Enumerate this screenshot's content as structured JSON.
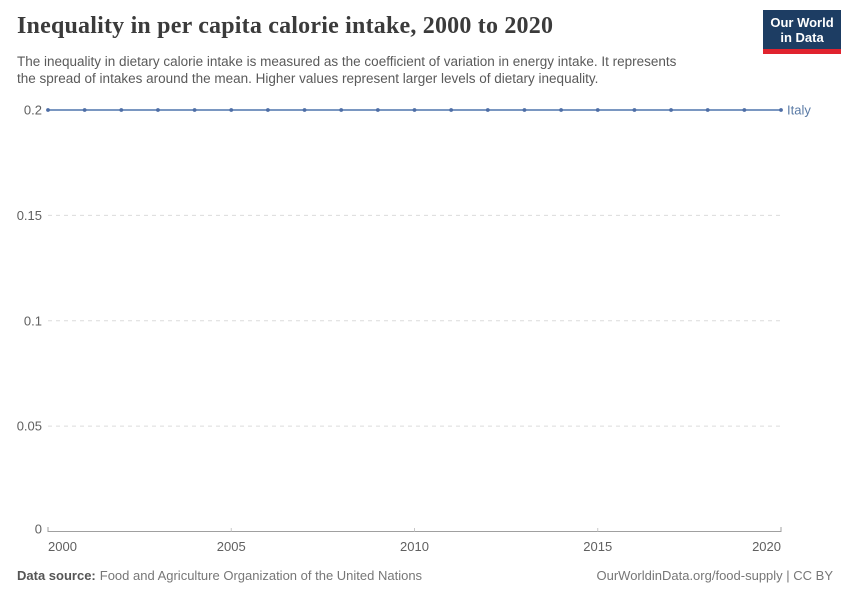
{
  "header": {
    "title": "Inequality in per capita calorie intake, 2000 to 2020",
    "subtitle_line1": "The inequality in dietary calorie intake is measured as the coefficient of variation in energy intake. It represents",
    "subtitle_line2": "the spread of intakes around the mean. Higher values represent larger levels of dietary inequality.",
    "logo_line1": "Our World",
    "logo_line2": "in Data",
    "logo_bg_color": "#1d3d63",
    "logo_stripe_color": "#e0232e"
  },
  "chart_data": {
    "type": "line",
    "title": "Inequality in per capita calorie intake, 2000 to 2020",
    "xlabel": "",
    "ylabel": "",
    "xlim": [
      2000,
      2020
    ],
    "ylim": [
      0,
      0.2
    ],
    "x_ticks": [
      2000,
      2005,
      2010,
      2015,
      2020
    ],
    "x_tick_labels": [
      "2000",
      "2005",
      "2010",
      "2015",
      "2020"
    ],
    "y_ticks": [
      0,
      0.05,
      0.1,
      0.15,
      0.2
    ],
    "y_tick_labels": [
      "0",
      "0.05",
      "0.1",
      "0.15",
      "0.2"
    ],
    "grid": "horizontal-dashed",
    "legend_position": "end-of-line-label",
    "series": [
      {
        "name": "Italy",
        "color": "#6788b8",
        "point_color": "#4e6ea6",
        "label_color": "#5b7ba6",
        "x": [
          2000,
          2001,
          2002,
          2003,
          2004,
          2005,
          2006,
          2007,
          2008,
          2009,
          2010,
          2011,
          2012,
          2013,
          2014,
          2015,
          2016,
          2017,
          2018,
          2019,
          2020
        ],
        "values": [
          0.2,
          0.2,
          0.2,
          0.2,
          0.2,
          0.2,
          0.2,
          0.2,
          0.2,
          0.2,
          0.2,
          0.2,
          0.2,
          0.2,
          0.2,
          0.2,
          0.2,
          0.2,
          0.2,
          0.2,
          0.2
        ]
      }
    ]
  },
  "footer": {
    "source_label": "Data source:",
    "source_value": "Food and Agriculture Organization of the United Nations",
    "attribution": "OurWorldinData.org/food-supply | CC BY"
  },
  "colors": {
    "title": "#3b3b3b",
    "subtitle": "#5a5a5a",
    "axis": "#a0a0a0",
    "minor_tick": "#c8c8c8",
    "gridline": "#dcdcdc",
    "tick_label": "#606060",
    "footer_text": "#777777"
  }
}
